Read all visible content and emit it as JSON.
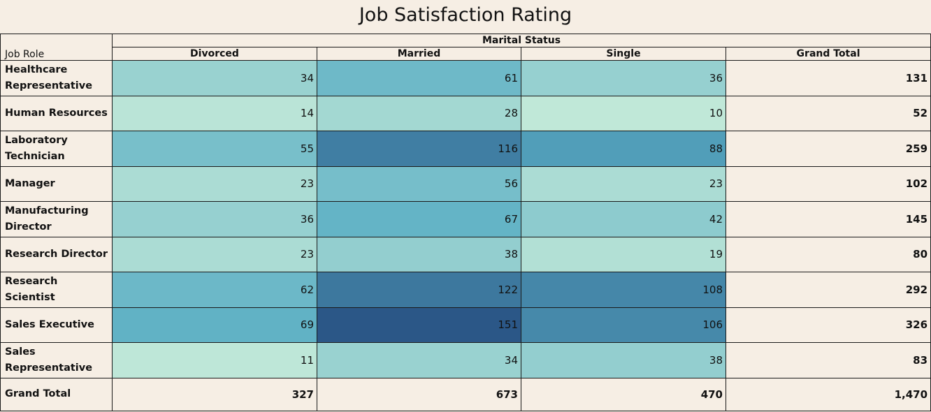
{
  "chart_data": {
    "type": "heatmap",
    "title": "Job Satisfaction Rating",
    "column_group_label": "Marital Status",
    "row_header_label": "Job Role",
    "columns": [
      "Divorced",
      "Married",
      "Single"
    ],
    "total_column_label": "Grand Total",
    "rows": [
      {
        "label": "Healthcare Representative",
        "values": [
          34,
          61,
          36
        ],
        "total": "131"
      },
      {
        "label": "Human Resources",
        "values": [
          14,
          28,
          10
        ],
        "total": "52"
      },
      {
        "label": "Laboratory Technician",
        "values": [
          55,
          116,
          88
        ],
        "total": "259"
      },
      {
        "label": "Manager",
        "values": [
          23,
          56,
          23
        ],
        "total": "102"
      },
      {
        "label": "Manufacturing Director",
        "values": [
          36,
          67,
          42
        ],
        "total": "145"
      },
      {
        "label": "Research Director",
        "values": [
          23,
          38,
          19
        ],
        "total": "80"
      },
      {
        "label": "Research Scientist",
        "values": [
          62,
          122,
          108
        ],
        "total": "292"
      },
      {
        "label": "Sales Executive",
        "values": [
          69,
          151,
          106
        ],
        "total": "326"
      },
      {
        "label": "Sales Representative",
        "values": [
          11,
          34,
          38
        ],
        "total": "83"
      }
    ],
    "grand_total_row": {
      "label": "Grand Total",
      "values": [
        "327",
        "673",
        "470"
      ],
      "total": "1,470"
    },
    "color_scale": {
      "low": "#c0e8d8",
      "high": "#2b5787"
    }
  }
}
